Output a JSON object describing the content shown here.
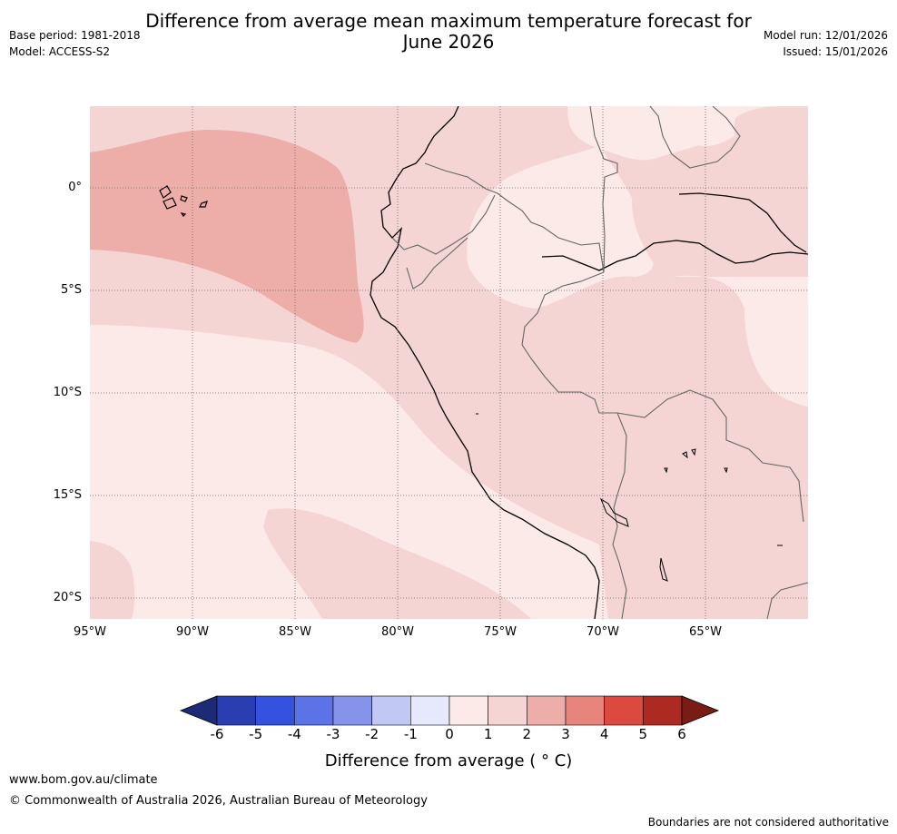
{
  "title_line1": "Difference from average mean maximum temperature forecast for",
  "title_line2": "June 2026",
  "base_period": "Base period: 1981-2018",
  "model": "Model: ACCESS-S2",
  "model_run": "Model run: 12/01/2026",
  "issued": "Issued: 15/01/2026",
  "lat_labels": [
    "0°",
    "5°S",
    "10°S",
    "15°S",
    "20°S"
  ],
  "lon_labels": [
    "95°W",
    "90°W",
    "85°W",
    "80°W",
    "75°W",
    "70°W",
    "65°W"
  ],
  "colorbar": {
    "ticks": [
      "-6",
      "-5",
      "-4",
      "-3",
      "-2",
      "-1",
      "0",
      "1",
      "2",
      "3",
      "4",
      "5",
      "6"
    ],
    "colors": [
      "#1d2a78",
      "#2a3eb1",
      "#3451e0",
      "#5b73e6",
      "#8594ea",
      "#c1c8f3",
      "#e6e9fb",
      "#fbeae8",
      "#f5d5d3",
      "#edaeaa",
      "#e7857d",
      "#dc4a3f",
      "#ac2a22",
      "#7a1c16"
    ],
    "title": "Difference from average ( ° C)"
  },
  "footer_url": "www.bom.gov.au/climate",
  "copyright": "© Commonwealth of Australia 2026, Australian Bureau of Meteorology",
  "disclaimer": "Boundaries are not considered authoritative"
}
